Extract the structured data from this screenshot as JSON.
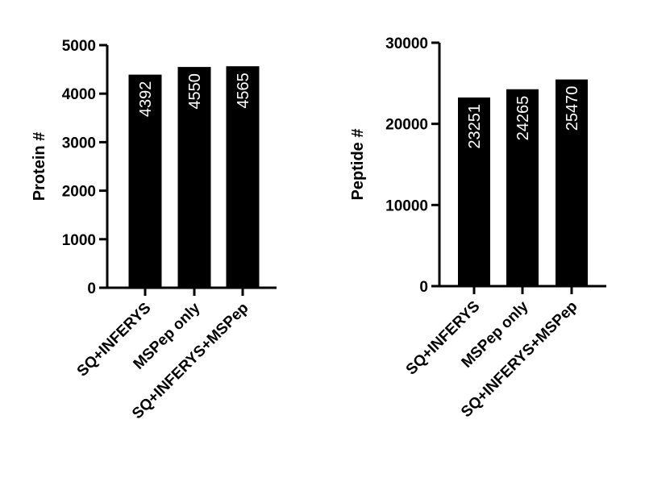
{
  "chart_data": [
    {
      "type": "bar",
      "categories": [
        "SQ+INFERYS",
        "MSPep only",
        "SQ+INFERYS+MSPep"
      ],
      "values": [
        4392,
        4550,
        4565
      ],
      "data_labels": [
        "4392",
        "4550",
        "4565"
      ],
      "title": "",
      "xlabel": "",
      "ylabel": "Protein #",
      "ylim": [
        0,
        5000
      ],
      "yticks": [
        0,
        1000,
        2000,
        3000,
        4000,
        5000
      ],
      "ytick_labels": [
        "0",
        "1000",
        "2000",
        "3000",
        "4000",
        "5000"
      ],
      "grid": false,
      "bar_color": "#000000",
      "label_color": "#ffffff"
    },
    {
      "type": "bar",
      "categories": [
        "SQ+INFERYS",
        "MSPep only",
        "SQ+INFERYS+MSPep"
      ],
      "values": [
        23251,
        24265,
        25470
      ],
      "data_labels": [
        "23251",
        "24265",
        "25470"
      ],
      "title": "",
      "xlabel": "",
      "ylabel": "Peptide #",
      "ylim": [
        0,
        30000
      ],
      "yticks": [
        0,
        10000,
        20000,
        30000
      ],
      "ytick_labels": [
        "0",
        "10000",
        "20000",
        "30000"
      ],
      "grid": false,
      "bar_color": "#000000",
      "label_color": "#ffffff"
    }
  ]
}
